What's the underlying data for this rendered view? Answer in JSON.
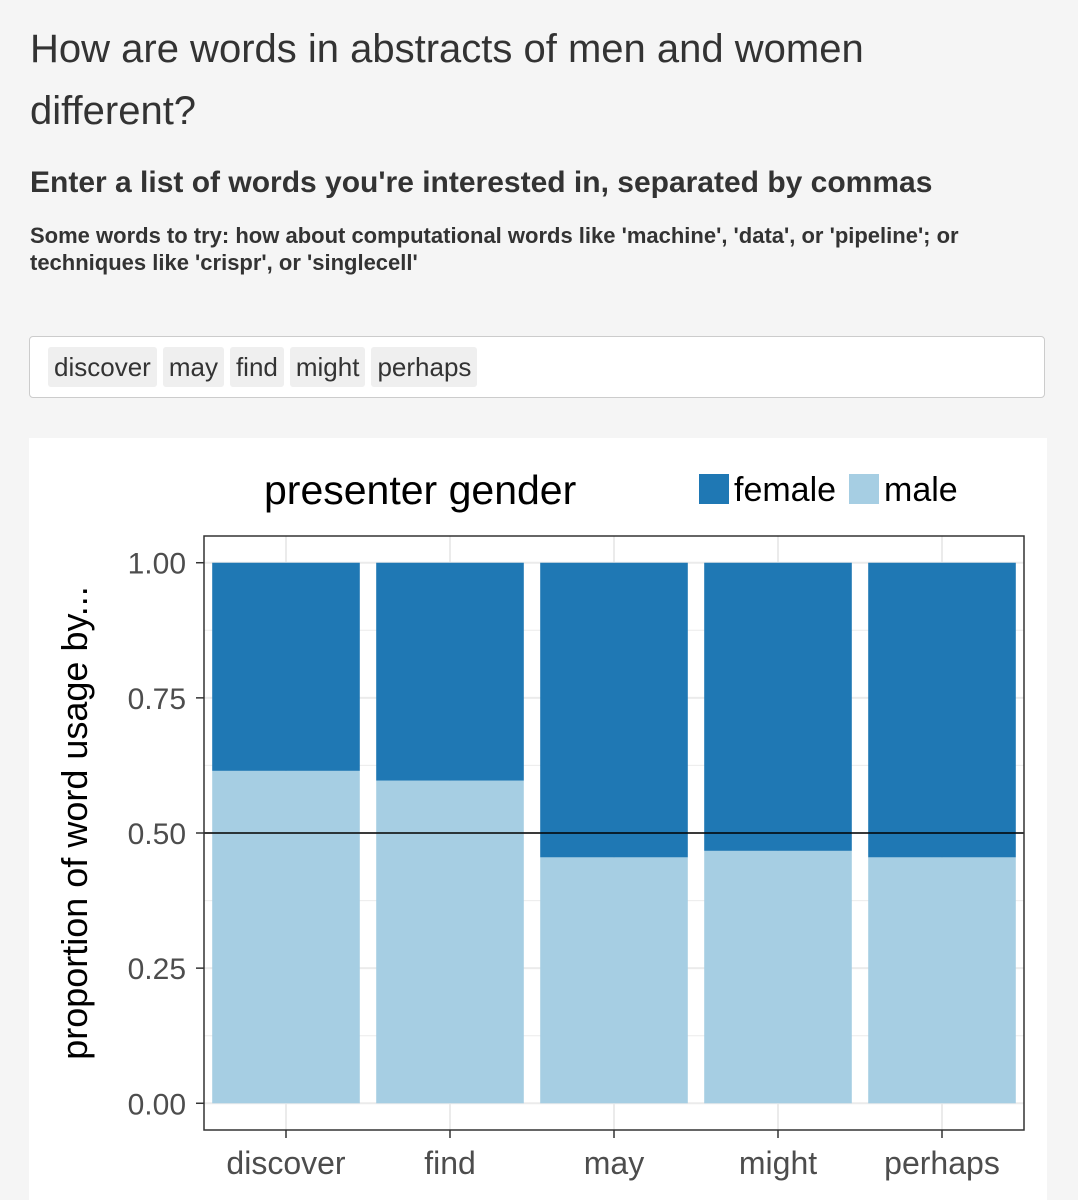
{
  "page": {
    "title": "How are words in abstracts of men and women different?",
    "subtitle": "Enter a list of words you're interested in, separated by commas",
    "hint": "Some words to try: how about computational words like 'machine', 'data', or 'pipeline'; or techniques like 'crispr', or 'singlecell'"
  },
  "input": {
    "tags": [
      "discover",
      "may",
      "find",
      "might",
      "perhaps"
    ]
  },
  "chart_data": {
    "type": "bar",
    "stacked": true,
    "legend_title": "presenter gender",
    "legend_position": "top",
    "ylabel": "proportion of word usage by...",
    "xlabel": "",
    "ylim": [
      0,
      1
    ],
    "yticks": [
      "0.00",
      "0.25",
      "0.50",
      "0.75",
      "1.00"
    ],
    "ytick_values": [
      0,
      0.25,
      0.5,
      0.75,
      1
    ],
    "reference_line": 0.5,
    "grid": true,
    "categories": [
      "discover",
      "find",
      "may",
      "might",
      "perhaps"
    ],
    "series": [
      {
        "name": "male",
        "color": "#a6cee3",
        "values": [
          0.615,
          0.597,
          0.455,
          0.467,
          0.455
        ]
      },
      {
        "name": "female",
        "color": "#1f78b4",
        "values": [
          0.385,
          0.403,
          0.545,
          0.533,
          0.545
        ]
      }
    ],
    "legend_order": [
      "female",
      "male"
    ],
    "colors": {
      "female": "#1f78b4",
      "male": "#a6cee3",
      "grid": "#ebebeb",
      "axis": "#333333"
    }
  }
}
